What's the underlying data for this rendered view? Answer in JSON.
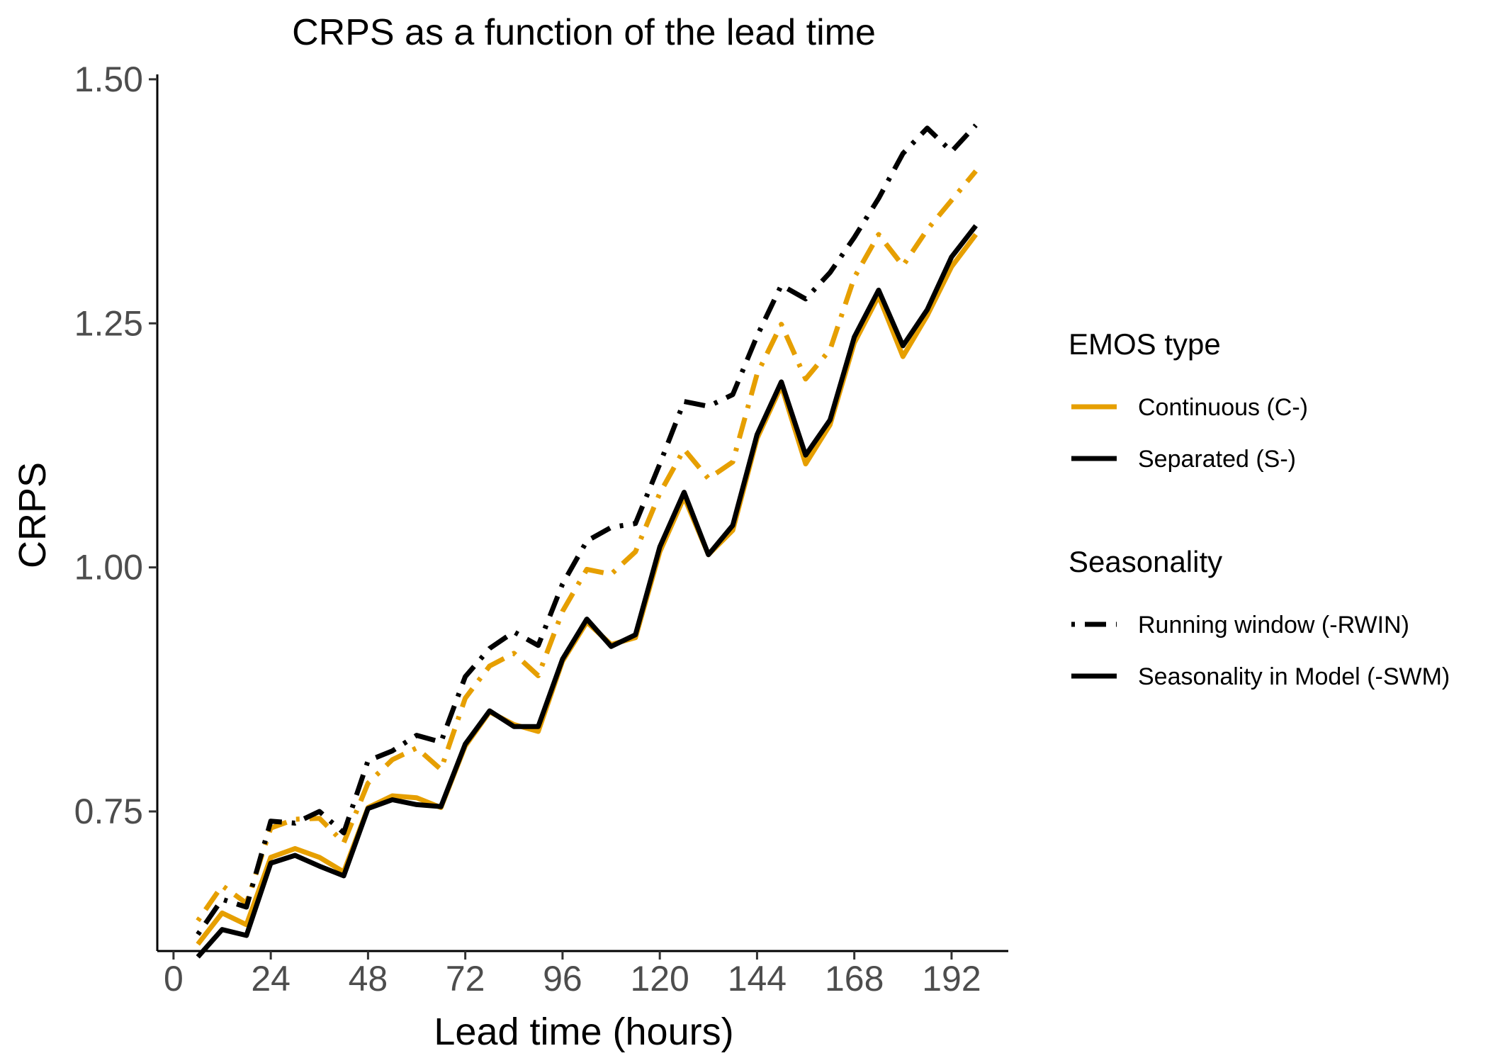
{
  "chart_data": {
    "type": "line",
    "title": "CRPS as a function of the lead time",
    "xlabel": "Lead time (hours)",
    "ylabel": "CRPS",
    "xlim": [
      -4,
      206
    ],
    "ylim": [
      0.607,
      1.505
    ],
    "xticks": [
      0,
      24,
      48,
      72,
      96,
      120,
      144,
      168,
      192
    ],
    "xtick_labels": [
      "0",
      "24",
      "48",
      "72",
      "96",
      "120",
      "144",
      "168",
      "192"
    ],
    "yticks": [
      0.75,
      1.0,
      1.25,
      1.5
    ],
    "ytick_labels": [
      "0.75",
      "1.00",
      "1.25",
      "1.50"
    ],
    "grid": false,
    "legend_position": "right",
    "x": [
      6,
      12,
      18,
      24,
      30,
      36,
      42,
      48,
      54,
      60,
      66,
      72,
      78,
      84,
      90,
      96,
      102,
      108,
      114,
      120,
      126,
      132,
      138,
      144,
      150,
      156,
      162,
      168,
      174,
      180,
      186,
      192,
      198
    ],
    "series": [
      {
        "name": "C-RWIN",
        "color": "#E69F00",
        "dash": "dotdash",
        "values": [
          0.638,
          0.674,
          0.656,
          0.733,
          0.742,
          0.743,
          0.718,
          0.779,
          0.803,
          0.815,
          0.793,
          0.866,
          0.899,
          0.912,
          0.889,
          0.955,
          0.998,
          0.993,
          1.016,
          1.076,
          1.121,
          1.091,
          1.108,
          1.198,
          1.249,
          1.193,
          1.223,
          1.297,
          1.341,
          1.309,
          1.346,
          1.376,
          1.406
        ]
      },
      {
        "name": "S-RWIN",
        "color": "#000000",
        "dash": "dotdash",
        "values": [
          0.624,
          0.66,
          0.652,
          0.74,
          0.738,
          0.75,
          0.728,
          0.802,
          0.812,
          0.828,
          0.821,
          0.888,
          0.917,
          0.934,
          0.92,
          0.983,
          1.027,
          1.041,
          1.045,
          1.106,
          1.17,
          1.165,
          1.177,
          1.237,
          1.289,
          1.275,
          1.302,
          1.338,
          1.378,
          1.424,
          1.45,
          1.426,
          1.453
        ]
      },
      {
        "name": "C-SWM",
        "color": "#E69F00",
        "dash": "solid",
        "values": [
          0.614,
          0.646,
          0.634,
          0.703,
          0.712,
          0.703,
          0.688,
          0.754,
          0.766,
          0.764,
          0.754,
          0.817,
          0.852,
          0.839,
          0.832,
          0.904,
          0.944,
          0.921,
          0.928,
          1.016,
          1.072,
          1.013,
          1.038,
          1.132,
          1.186,
          1.106,
          1.146,
          1.23,
          1.278,
          1.216,
          1.258,
          1.308,
          1.341
        ]
      },
      {
        "name": "S-SWM",
        "color": "#000000",
        "dash": "solid",
        "values": [
          0.601,
          0.629,
          0.623,
          0.697,
          0.705,
          0.694,
          0.684,
          0.753,
          0.762,
          0.757,
          0.755,
          0.819,
          0.853,
          0.837,
          0.837,
          0.906,
          0.947,
          0.919,
          0.931,
          1.021,
          1.077,
          1.013,
          1.043,
          1.136,
          1.19,
          1.115,
          1.151,
          1.236,
          1.284,
          1.227,
          1.264,
          1.318,
          1.35
        ]
      }
    ],
    "legends": [
      {
        "title": "EMOS type",
        "entries": [
          {
            "label": "Continuous (C-)",
            "color": "#E69F00",
            "dash": "solid"
          },
          {
            "label": "Separated (S-)",
            "color": "#000000",
            "dash": "solid"
          }
        ]
      },
      {
        "title": "Seasonality",
        "entries": [
          {
            "label": "Running window (-RWIN)",
            "color": "#000000",
            "dash": "dotdash"
          },
          {
            "label": "Seasonality in Model (-SWM)",
            "color": "#000000",
            "dash": "solid"
          }
        ]
      }
    ]
  }
}
